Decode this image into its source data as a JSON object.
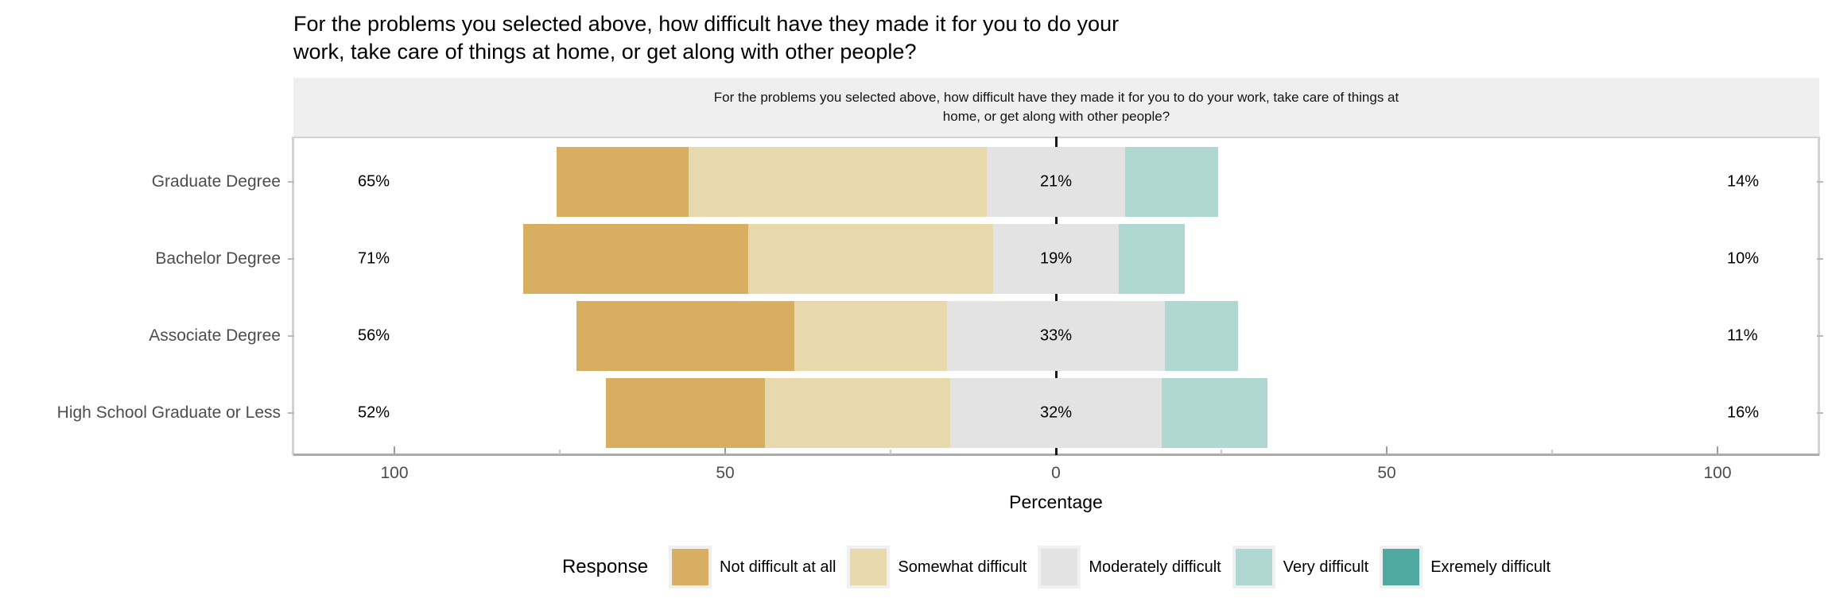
{
  "title": {
    "line1": "For the problems you selected above, how difficult have they made it for you to do your",
    "line2": "work, take care of things at home, or get along with other people?"
  },
  "facet_strip": {
    "line1": "For the problems you selected above, how difficult have they made it for you to do your work, take care of things at",
    "line2": "home, or get along with other people?"
  },
  "chart_data": {
    "type": "bar",
    "variant": "horizontal-diverging-stacked-likert",
    "categories": [
      "Graduate Degree",
      "Bachelor Degree",
      "Associate Degree",
      "High School Graduate or Less"
    ],
    "series": [
      {
        "name": "Not difficult at all",
        "color": "#d8ae60",
        "values": [
          20,
          34,
          33,
          24
        ]
      },
      {
        "name": "Somewhat difficult",
        "color": "#e8d9ac",
        "values": [
          45,
          37,
          23,
          28
        ]
      },
      {
        "name": "Moderately difficult",
        "color": "#e3e3e3",
        "values": [
          21,
          19,
          33,
          32
        ]
      },
      {
        "name": "Very difficult",
        "color": "#aed8d1",
        "values": [
          14,
          10,
          11,
          16
        ]
      },
      {
        "name": "Exremely difficult",
        "color": "#4fa9a1",
        "values": [
          0,
          0,
          0,
          0
        ]
      }
    ],
    "bar_labels": {
      "left": [
        "65%",
        "71%",
        "56%",
        "52%"
      ],
      "center": [
        "21%",
        "19%",
        "33%",
        "32%"
      ],
      "right": [
        "14%",
        "10%",
        "11%",
        "16%"
      ]
    },
    "x_axis": {
      "title": "Percentage",
      "range": [
        -115,
        115
      ],
      "major_ticks": [
        {
          "value": -100,
          "label": "100"
        },
        {
          "value": -50,
          "label": "50"
        },
        {
          "value": 0,
          "label": "0"
        },
        {
          "value": 50,
          "label": "50"
        },
        {
          "value": 100,
          "label": "100"
        }
      ],
      "minor_ticks": [
        -75,
        -25,
        25,
        75
      ],
      "note": "gray Moderately-difficult segment is centered on 0; left label = Not difficult + Somewhat; right label = Very + Exremely"
    },
    "legend": {
      "title": "Response",
      "items": [
        "Not difficult at all",
        "Somewhat difficult",
        "Moderately difficult",
        "Very difficult",
        "Exremely difficult"
      ]
    }
  },
  "styling": {
    "strip_background": "#efefef",
    "zero_line_color": "#1a1a1a",
    "axis_line_color": "#ababab",
    "panel_border_color": "#d2d2d2",
    "tick_color": "#9b9b9b",
    "axis_text_color": "#4d4d4d"
  }
}
